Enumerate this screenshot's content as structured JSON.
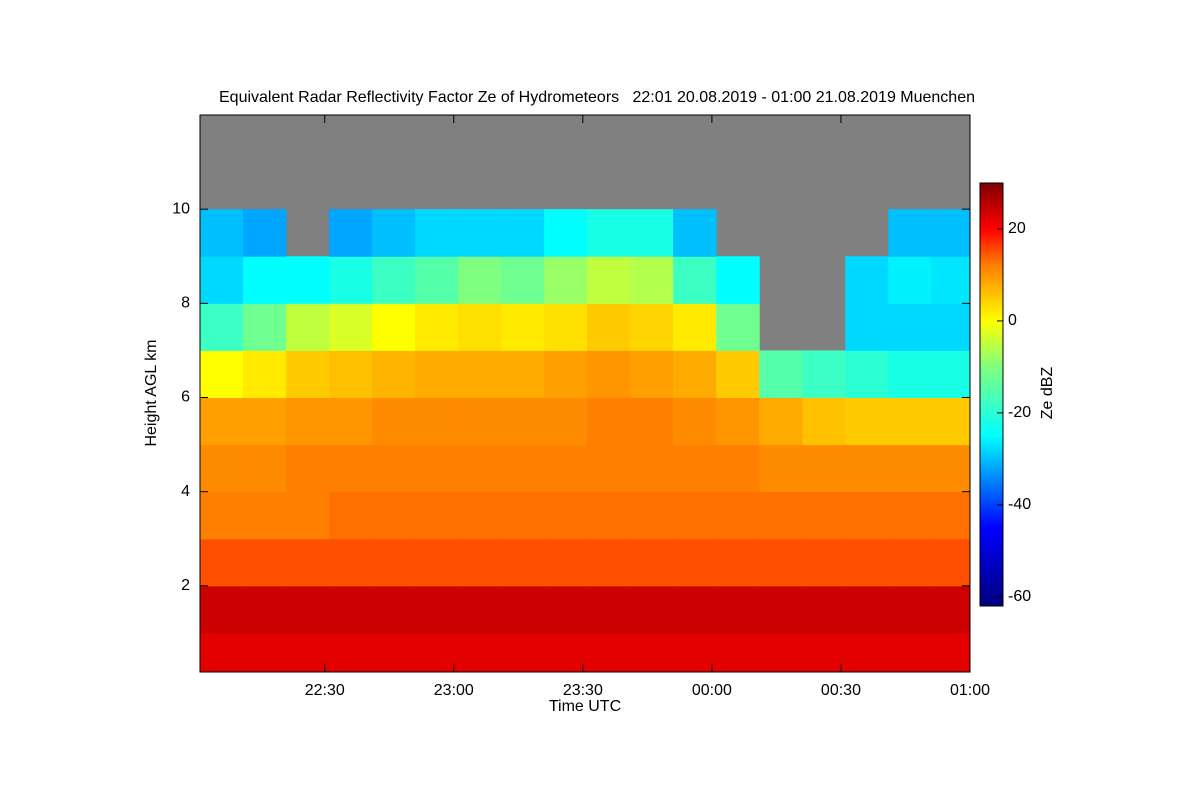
{
  "chart_data": {
    "type": "heatmap",
    "title": "Equivalent Radar Reflectivity Factor Ze of Hydrometeors   22:01 20.08.2019 - 01:00 21.08.2019 Muenchen",
    "x_label": "Time UTC",
    "y_label": "Height AGL km",
    "colorbar_label": "Ze dBZ",
    "xlim": [
      1,
      180
    ],
    "xticks": [
      {
        "value": 30,
        "label": "22:30"
      },
      {
        "value": 60,
        "label": "23:00"
      },
      {
        "value": 90,
        "label": "23:30"
      },
      {
        "value": 120,
        "label": "00:00"
      },
      {
        "value": 150,
        "label": "00:30"
      },
      {
        "value": 180,
        "label": "01:00"
      }
    ],
    "ylim": [
      0.17,
      12.0
    ],
    "yticks": [
      2,
      4,
      6,
      8,
      10
    ],
    "zlim": [
      -62,
      30
    ],
    "zticks": [
      20,
      0,
      -20,
      -40,
      -60
    ],
    "background_color": "#808080",
    "colorscale": [
      {
        "value": -62,
        "color": "#00007f"
      },
      {
        "value": -45,
        "color": "#0000ff"
      },
      {
        "value": -25,
        "color": "#00ffff"
      },
      {
        "value": -10,
        "color": "#7fff7f"
      },
      {
        "value": 0,
        "color": "#ffff00"
      },
      {
        "value": 12,
        "color": "#ff8000"
      },
      {
        "value": 20,
        "color": "#ff0000"
      },
      {
        "value": 30,
        "color": "#7f0000"
      }
    ],
    "x_edges": [
      1,
      11,
      21,
      31,
      41,
      51,
      61,
      71,
      81,
      91,
      101,
      111,
      121,
      131,
      141,
      151,
      161,
      171,
      180
    ],
    "y_edges": [
      0.17,
      1,
      2,
      3,
      4,
      5,
      6,
      7,
      8,
      9,
      10,
      11,
      12
    ],
    "z": [
      [
        22,
        24,
        15,
        12,
        11,
        9,
        0,
        -18,
        -28,
        -30,
        null,
        null
      ],
      [
        22,
        24,
        15,
        12,
        11,
        9,
        2,
        -12,
        -25,
        -32,
        null,
        null
      ],
      [
        22,
        24,
        15,
        12,
        12,
        10,
        5,
        -5,
        -25,
        null,
        null,
        null
      ],
      [
        22,
        24,
        15,
        13,
        12,
        10,
        6,
        -3,
        -22,
        -32,
        null,
        null
      ],
      [
        22,
        24,
        15,
        13,
        12,
        11,
        7,
        0,
        -18,
        -30,
        null,
        null
      ],
      [
        22,
        24,
        15,
        13,
        12,
        11,
        8,
        2,
        -15,
        -28,
        null,
        null
      ],
      [
        22,
        24,
        15,
        13,
        12,
        11,
        8,
        3,
        -10,
        -28,
        null,
        null
      ],
      [
        22,
        24,
        15,
        13,
        12,
        11,
        8,
        2,
        -12,
        -28,
        null,
        null
      ],
      [
        22,
        24,
        15,
        13,
        12,
        11,
        9,
        3,
        -8,
        -25,
        null,
        null
      ],
      [
        22,
        24,
        15,
        13,
        12,
        12,
        10,
        5,
        -5,
        -22,
        null,
        null
      ],
      [
        22,
        24,
        15,
        13,
        12,
        12,
        9,
        4,
        -6,
        -22,
        null,
        null
      ],
      [
        22,
        24,
        15,
        13,
        12,
        11,
        8,
        2,
        -18,
        -30,
        null,
        null
      ],
      [
        22,
        24,
        15,
        13,
        12,
        10,
        5,
        -12,
        -25,
        null,
        null,
        null
      ],
      [
        22,
        24,
        15,
        13,
        11,
        8,
        -15,
        null,
        null,
        null,
        null,
        null
      ],
      [
        22,
        24,
        15,
        13,
        11,
        6,
        -18,
        null,
        null,
        null,
        null,
        null
      ],
      [
        22,
        24,
        15,
        13,
        11,
        5,
        -20,
        -28,
        -28,
        null,
        null,
        null
      ],
      [
        22,
        24,
        15,
        13,
        11,
        5,
        -22,
        -28,
        -26,
        -30,
        null,
        null
      ],
      [
        22,
        24,
        15,
        13,
        11,
        5,
        -22,
        -28,
        -27,
        -30,
        null,
        null
      ]
    ]
  }
}
